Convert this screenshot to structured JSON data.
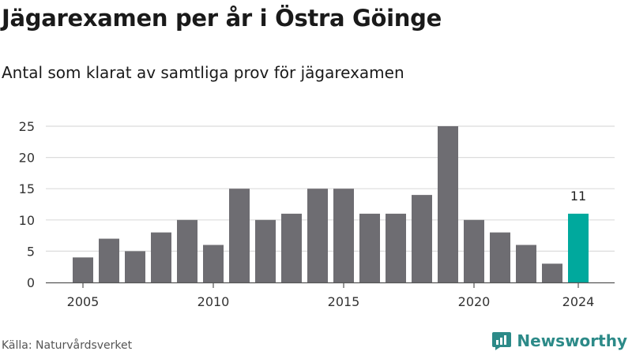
{
  "title": "Jägarexamen per år i Östra Göinge",
  "subtitle": "Antal som klarat av samtliga prov för jägarexamen",
  "source": "Källa: Naturvårdsverket",
  "brand": {
    "name": "Newsworthy",
    "logo_icon": "newsworthy-logo-icon",
    "color": "#2c8a88"
  },
  "chart_data": {
    "type": "bar",
    "x": [
      2005,
      2006,
      2007,
      2008,
      2009,
      2010,
      2011,
      2012,
      2013,
      2014,
      2015,
      2016,
      2017,
      2018,
      2019,
      2020,
      2021,
      2022,
      2023,
      2024
    ],
    "values": [
      4,
      7,
      5,
      8,
      10,
      6,
      15,
      10,
      11,
      15,
      15,
      11,
      11,
      14,
      25,
      10,
      8,
      6,
      3,
      11
    ],
    "x_ticks": [
      2005,
      2010,
      2015,
      2020,
      2024
    ],
    "y_ticks": [
      0,
      5,
      10,
      15,
      20,
      25
    ],
    "ylim": [
      0,
      25
    ],
    "grid": true,
    "bar_color": "#6e6d72",
    "highlight_color": "#00a99d",
    "highlight": {
      "x": 2024,
      "label": "11"
    }
  }
}
